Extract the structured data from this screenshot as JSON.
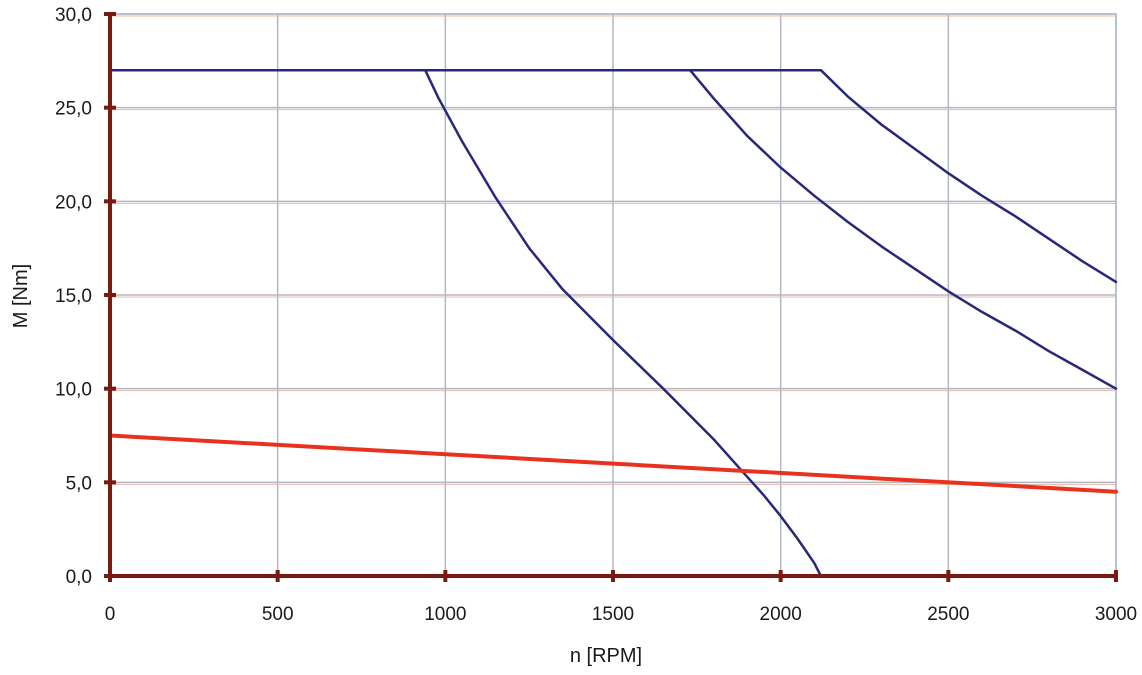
{
  "chart_data": {
    "type": "line",
    "title": "",
    "xlabel": "n [RPM]",
    "ylabel": "M [Nm]",
    "xlim": [
      0,
      3000
    ],
    "ylim": [
      0,
      30
    ],
    "grid": true,
    "x_ticks": [
      "0",
      "500",
      "1000",
      "1500",
      "2000",
      "2500",
      "3000"
    ],
    "x_tick_values": [
      0,
      500,
      1000,
      1500,
      2000,
      2500,
      3000
    ],
    "y_ticks": [
      "0,0",
      "5,0",
      "10,0",
      "15,0",
      "20,0",
      "25,0",
      "30,0"
    ],
    "y_tick_values": [
      0,
      5,
      10,
      15,
      20,
      25,
      30
    ],
    "colors": {
      "series": "#28287a",
      "load": "#e8321e",
      "axis": "#7a1a10",
      "grid": "#b0b8c4",
      "grid_minor": "#e8b8a8"
    },
    "series": [
      {
        "color": "#28287a",
        "x": [
          0,
          940,
          980,
          1050,
          1150,
          1250,
          1350,
          1500,
          1650,
          1800,
          1900,
          1950,
          2000,
          2050,
          2100,
          2120
        ],
        "y": [
          27,
          27,
          25.5,
          23.2,
          20.2,
          17.5,
          15.3,
          12.6,
          10.0,
          7.3,
          5.3,
          4.3,
          3.2,
          2.0,
          0.7,
          0
        ]
      },
      {
        "color": "#28287a",
        "x": [
          0,
          1730,
          1800,
          1900,
          2000,
          2100,
          2200,
          2300,
          2400,
          2500,
          2600,
          2700,
          2800,
          2900,
          3000
        ],
        "y": [
          27,
          27,
          25.5,
          23.5,
          21.8,
          20.3,
          18.9,
          17.6,
          16.4,
          15.2,
          14.1,
          13.1,
          12.0,
          11.0,
          10.0
        ]
      },
      {
        "color": "#28287a",
        "x": [
          0,
          2120,
          2200,
          2300,
          2400,
          2500,
          2600,
          2700,
          2800,
          2900,
          3000
        ],
        "y": [
          27,
          27,
          25.6,
          24.1,
          22.8,
          21.5,
          20.3,
          19.2,
          18.0,
          16.8,
          15.7
        ]
      },
      {
        "color": "#e8321e",
        "x": [
          0,
          3000
        ],
        "y": [
          7.5,
          4.5
        ]
      }
    ]
  }
}
